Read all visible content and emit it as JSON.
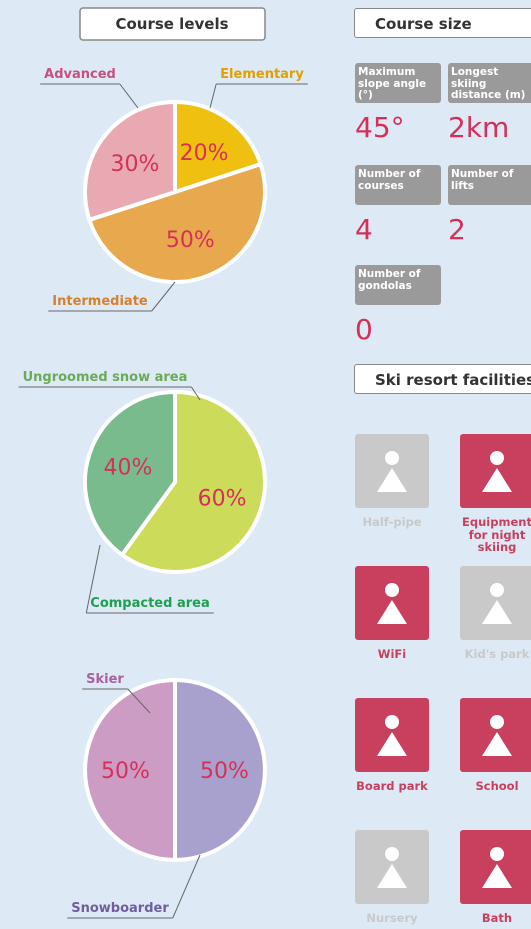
{
  "chart_data": [
    {
      "type": "pie",
      "title": "Course levels",
      "categories": [
        "Elementary",
        "Intermediate",
        "Advanced"
      ],
      "values": [
        20,
        50,
        30
      ],
      "value_labels": [
        "20%",
        "50%",
        "30%"
      ],
      "colors": [
        "#f0c010",
        "#e8a84e",
        "#e9a9b2"
      ],
      "label_colors": [
        "#e0a000",
        "#d4812e",
        "#c8507e"
      ]
    },
    {
      "type": "pie",
      "categories": [
        "Compacted area",
        "Ungroomed snow area"
      ],
      "values": [
        60,
        40
      ],
      "value_labels": [
        "60%",
        "40%"
      ],
      "colors": [
        "#ccdb5a",
        "#79bb8c"
      ],
      "label_colors": [
        "#1ea050",
        "#6aaa58"
      ]
    },
    {
      "type": "pie",
      "categories": [
        "Snowboarder",
        "Skier"
      ],
      "values": [
        50,
        50
      ],
      "value_labels": [
        "50%",
        "50%"
      ],
      "colors": [
        "#a9a1cd",
        "#cd9cc4"
      ],
      "label_colors": [
        "#6e5ea0",
        "#a8609e"
      ]
    }
  ],
  "course_size": {
    "title": "Course size",
    "stats": [
      {
        "label": "Maximum slope angle (°)",
        "value": "45°"
      },
      {
        "label": "Longest skiing distance (m)",
        "value": "2km"
      },
      {
        "label": "Number of courses",
        "value": "4"
      },
      {
        "label": "Number of lifts",
        "value": "2"
      },
      {
        "label": "Number of gondolas",
        "value": "0"
      }
    ]
  },
  "facilities": {
    "title": "Ski resort facilities",
    "items": [
      {
        "label": "Half-pipe",
        "available": false
      },
      {
        "label": "Equipment for night skiing",
        "available": true
      },
      {
        "label": "WiFi",
        "available": true
      },
      {
        "label": "Kid's park",
        "available": false
      },
      {
        "label": "Board park",
        "available": true
      },
      {
        "label": "School",
        "available": true
      },
      {
        "label": "Nursery",
        "available": false
      },
      {
        "label": "Bath",
        "available": true
      }
    ]
  }
}
